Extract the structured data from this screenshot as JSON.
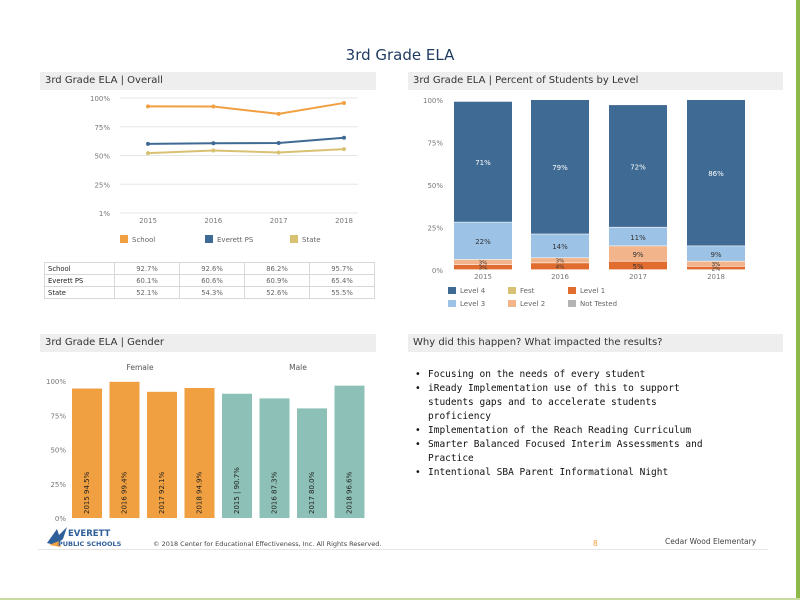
{
  "page": {
    "title": "3rd Grade ELA",
    "page_number": "8",
    "school": "Cedar Wood Elementary",
    "copyright": "© 2018 Center for Educational Effectiveness, Inc. All Rights Reserved.",
    "logo": {
      "line1": "EVERETT",
      "line2": "PUBLIC SCHOOLS"
    }
  },
  "colors": {
    "school": "#f0a040",
    "everett": "#3f6a93",
    "state": "#d9c173",
    "level4": "#3f6a93",
    "level3": "#9cc2e5",
    "level2": "#f2b48a",
    "level1": "#e06c2f",
    "fest": "#d9c173",
    "not_tested": "#b3b3b3",
    "female": "#f0a040",
    "male": "#8dc0b6"
  },
  "panels": {
    "overall": "3rd Grade ELA | Overall",
    "levels": "3rd Grade ELA | Percent of Students by Level",
    "gender": "3rd Grade ELA | Gender",
    "why": "Why did this happen? What impacted the results?"
  },
  "why_items": [
    "Focusing on the needs of every student",
    "iReady Implementation use of this to support students gaps and to accelerate students proficiency",
    "Implementation  of the Reach Reading Curriculum",
    "Smarter Balanced Focused Interim Assessments and Practice",
    "Intentional SBA Parent Informational Night"
  ],
  "overall_table": {
    "rows": [
      {
        "label": "School",
        "values": [
          "92.7%",
          "92.6%",
          "86.2%",
          "95.7%"
        ]
      },
      {
        "label": "Everett PS",
        "values": [
          "60.1%",
          "60.6%",
          "60.9%",
          "65.4%"
        ]
      },
      {
        "label": "State",
        "values": [
          "52.1%",
          "54.3%",
          "52.6%",
          "55.5%"
        ]
      }
    ]
  },
  "chart_data": [
    {
      "type": "line",
      "title": "3rd Grade ELA | Overall",
      "x": [
        "2015",
        "2016",
        "2017",
        "2018"
      ],
      "y_ticks": [
        "100%",
        "75%",
        "50%",
        "25%",
        "1%"
      ],
      "ylim": [
        0,
        100
      ],
      "series": [
        {
          "name": "School",
          "values": [
            92.7,
            92.6,
            86.2,
            95.7
          ]
        },
        {
          "name": "Everett PS",
          "values": [
            60.1,
            60.6,
            60.9,
            65.4
          ]
        },
        {
          "name": "State",
          "values": [
            52.1,
            54.3,
            52.6,
            55.5
          ]
        }
      ],
      "legend": [
        "School",
        "Everett PS",
        "State"
      ],
      "legend_position": "bottom"
    },
    {
      "type": "bar",
      "stacked": true,
      "title": "3rd Grade ELA | Percent of Students by Level",
      "categories": [
        "2015",
        "2016",
        "2017",
        "2018"
      ],
      "y_ticks": [
        "100%",
        "75%",
        "50%",
        "25%",
        "0%"
      ],
      "ylim": [
        0,
        100
      ],
      "series": [
        {
          "name": "Level 1",
          "values": [
            3,
            4,
            5,
            2
          ],
          "labels": [
            "3%",
            "4%",
            "5%",
            "2%"
          ]
        },
        {
          "name": "Level 2",
          "values": [
            3,
            3,
            9,
            3
          ],
          "labels": [
            "3%",
            "3%",
            "9%",
            "3%"
          ]
        },
        {
          "name": "Level 3",
          "values": [
            22,
            14,
            11,
            9
          ],
          "labels": [
            "22%",
            "14%",
            "11%",
            "9%"
          ]
        },
        {
          "name": "Level 4",
          "values": [
            71,
            79,
            72,
            86
          ],
          "labels": [
            "71%",
            "79%",
            "72%",
            "86%"
          ]
        }
      ],
      "legend": [
        "Level 4",
        "Fest",
        "Level 1",
        "Level 3",
        "Level 2",
        "Not Tested"
      ],
      "legend_position": "bottom"
    },
    {
      "type": "bar",
      "title": "3rd Grade ELA | Gender",
      "groups": [
        "Female",
        "Male"
      ],
      "y_ticks": [
        "100%",
        "75%",
        "50%",
        "25%",
        "0%"
      ],
      "ylim": [
        0,
        100
      ],
      "bars": [
        {
          "group": "Female",
          "label": "2015  94.5%",
          "value": 94.5
        },
        {
          "group": "Female",
          "label": "2016  99.4%",
          "value": 99.4
        },
        {
          "group": "Female",
          "label": "2017  92.1%",
          "value": 92.1
        },
        {
          "group": "Female",
          "label": "2018  94.9%",
          "value": 94.9
        },
        {
          "group": "Male",
          "label": "2015 | 90.7%",
          "value": 90.7
        },
        {
          "group": "Male",
          "label": "2016  87.3%",
          "value": 87.3
        },
        {
          "group": "Male",
          "label": "2017  80.0%",
          "value": 80.0
        },
        {
          "group": "Male",
          "label": "2018  96.6%",
          "value": 96.6
        }
      ]
    }
  ]
}
